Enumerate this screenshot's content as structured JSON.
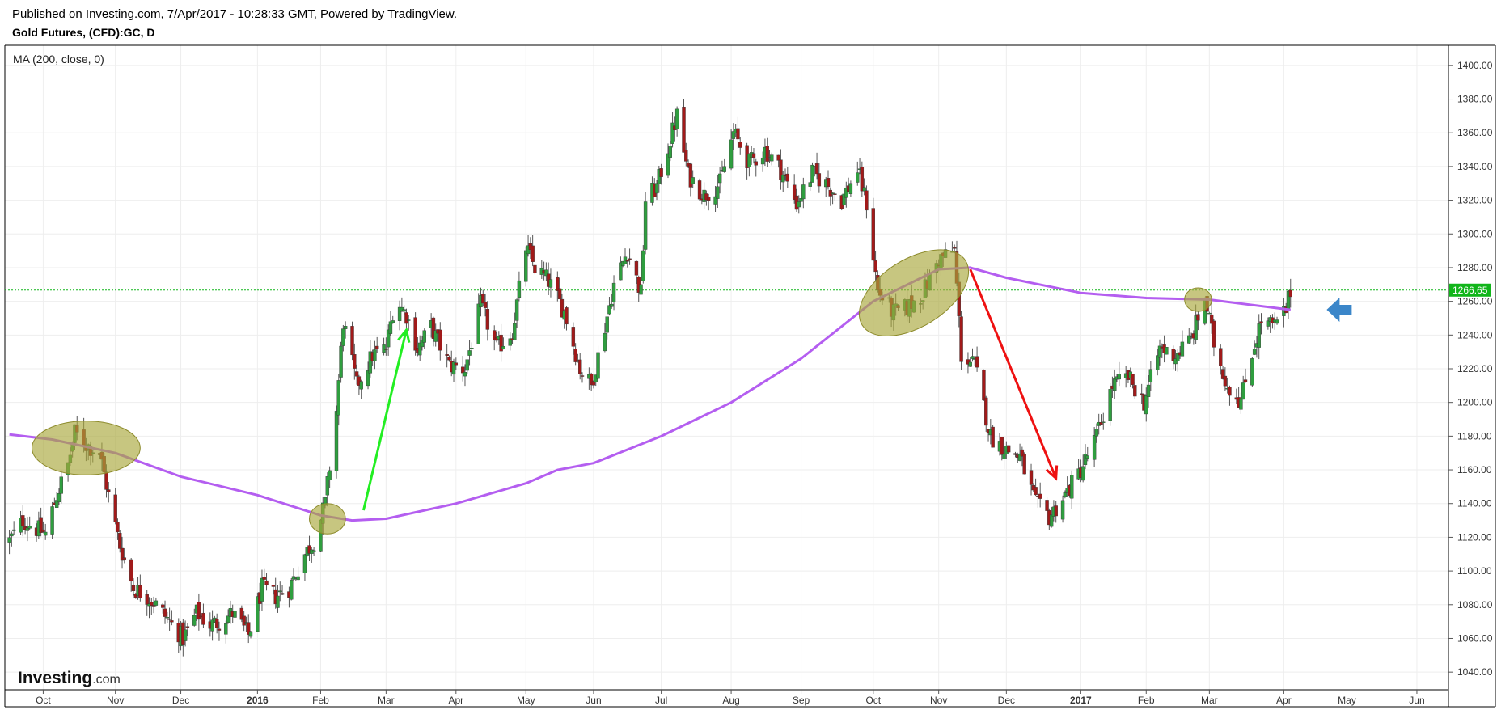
{
  "header": {
    "published": "Published on Investing.com, 7/Apr/2017 - 10:28:33 GMT, Powered by TradingView.",
    "instrument": "Gold Futures, (CFD):GC, D"
  },
  "indicator_label": "MA (200, close, 0)",
  "branding": {
    "logo_main": "Investing",
    "logo_suffix": ".com"
  },
  "colors": {
    "up_candle": "#2f9e3f",
    "down_candle": "#a11a1a",
    "moving_average": "#b45ef0",
    "last_price_line": "#11b51a",
    "annotation_ellipse": "#a9a83c",
    "arrow_up": "#22ee22",
    "arrow_down": "#ee1111",
    "arrow_pointer": "#3b86c9"
  },
  "icons": {
    "pointer": "left-arrow-icon"
  },
  "chart_data": {
    "type": "candlestick",
    "title": "Gold Futures, (CFD):GC, D",
    "ylim": [
      1030,
      1410
    ],
    "y_ticks": [
      "1040.00",
      "1060.00",
      "1080.00",
      "1100.00",
      "1120.00",
      "1140.00",
      "1160.00",
      "1180.00",
      "1200.00",
      "1220.00",
      "1240.00",
      "1260.00",
      "1280.00",
      "1300.00",
      "1320.00",
      "1340.00",
      "1360.00",
      "1380.00",
      "1400.00"
    ],
    "x_ticks": [
      {
        "label": "Oct",
        "date": "2015-10-01",
        "bold": false
      },
      {
        "label": "Nov",
        "date": "2015-11-02",
        "bold": false
      },
      {
        "label": "Dec",
        "date": "2015-12-01",
        "bold": false
      },
      {
        "label": "2016",
        "date": "2016-01-04",
        "bold": true
      },
      {
        "label": "Feb",
        "date": "2016-02-01",
        "bold": false
      },
      {
        "label": "Mar",
        "date": "2016-03-01",
        "bold": false
      },
      {
        "label": "Apr",
        "date": "2016-04-01",
        "bold": false
      },
      {
        "label": "May",
        "date": "2016-05-02",
        "bold": false
      },
      {
        "label": "Jun",
        "date": "2016-06-01",
        "bold": false
      },
      {
        "label": "Jul",
        "date": "2016-07-01",
        "bold": false
      },
      {
        "label": "Aug",
        "date": "2016-08-01",
        "bold": false
      },
      {
        "label": "Sep",
        "date": "2016-09-01",
        "bold": false
      },
      {
        "label": "Oct",
        "date": "2016-10-03",
        "bold": false
      },
      {
        "label": "Nov",
        "date": "2016-11-01",
        "bold": false
      },
      {
        "label": "Dec",
        "date": "2016-12-01",
        "bold": false
      },
      {
        "label": "2017",
        "date": "2017-01-03",
        "bold": true
      },
      {
        "label": "Feb",
        "date": "2017-02-01",
        "bold": false
      },
      {
        "label": "Mar",
        "date": "2017-03-01",
        "bold": false
      },
      {
        "label": "Apr",
        "date": "2017-04-03",
        "bold": false
      },
      {
        "label": "May",
        "date": "2017-05-01",
        "bold": false
      },
      {
        "label": "Jun",
        "date": "2017-06-01",
        "bold": false
      }
    ],
    "last_price": 1266.65,
    "last_price_label": "1266.65",
    "close_path": [
      [
        "2015-09-16",
        1118
      ],
      [
        "2015-09-22",
        1130
      ],
      [
        "2015-09-28",
        1125
      ],
      [
        "2015-10-02",
        1122
      ],
      [
        "2015-10-07",
        1145
      ],
      [
        "2015-10-12",
        1163
      ],
      [
        "2015-10-15",
        1182
      ],
      [
        "2015-10-20",
        1175
      ],
      [
        "2015-10-26",
        1170
      ],
      [
        "2015-10-30",
        1145
      ],
      [
        "2015-11-04",
        1115
      ],
      [
        "2015-11-10",
        1090
      ],
      [
        "2015-11-16",
        1085
      ],
      [
        "2015-11-20",
        1080
      ],
      [
        "2015-11-26",
        1070
      ],
      [
        "2015-12-02",
        1060
      ],
      [
        "2015-12-08",
        1075
      ],
      [
        "2015-12-14",
        1068
      ],
      [
        "2015-12-18",
        1070
      ],
      [
        "2015-12-24",
        1075
      ],
      [
        "2015-12-31",
        1062
      ],
      [
        "2016-01-06",
        1090
      ],
      [
        "2016-01-12",
        1085
      ],
      [
        "2016-01-18",
        1090
      ],
      [
        "2016-01-25",
        1110
      ],
      [
        "2016-01-29",
        1118
      ],
      [
        "2016-02-03",
        1140
      ],
      [
        "2016-02-08",
        1195
      ],
      [
        "2016-02-11",
        1248
      ],
      [
        "2016-02-17",
        1210
      ],
      [
        "2016-02-24",
        1228
      ],
      [
        "2016-03-01",
        1232
      ],
      [
        "2016-03-05",
        1262
      ],
      [
        "2016-03-10",
        1252
      ],
      [
        "2016-03-15",
        1232
      ],
      [
        "2016-03-21",
        1245
      ],
      [
        "2016-03-29",
        1222
      ],
      [
        "2016-04-05",
        1220
      ],
      [
        "2016-04-12",
        1258
      ],
      [
        "2016-04-19",
        1232
      ],
      [
        "2016-04-26",
        1242
      ],
      [
        "2016-05-02",
        1292
      ],
      [
        "2016-05-06",
        1280
      ],
      [
        "2016-05-12",
        1272
      ],
      [
        "2016-05-19",
        1254
      ],
      [
        "2016-05-26",
        1220
      ],
      [
        "2016-05-31",
        1210
      ],
      [
        "2016-06-06",
        1245
      ],
      [
        "2016-06-10",
        1270
      ],
      [
        "2016-06-16",
        1290
      ],
      [
        "2016-06-22",
        1265
      ],
      [
        "2016-06-24",
        1320
      ],
      [
        "2016-06-29",
        1328
      ],
      [
        "2016-07-05",
        1356
      ],
      [
        "2016-07-08",
        1370
      ],
      [
        "2016-07-13",
        1335
      ],
      [
        "2016-07-20",
        1323
      ],
      [
        "2016-07-27",
        1330
      ],
      [
        "2016-08-02",
        1360
      ],
      [
        "2016-08-09",
        1342
      ],
      [
        "2016-08-16",
        1350
      ],
      [
        "2016-08-23",
        1338
      ],
      [
        "2016-08-30",
        1318
      ],
      [
        "2016-09-06",
        1336
      ],
      [
        "2016-09-12",
        1330
      ],
      [
        "2016-09-19",
        1320
      ],
      [
        "2016-09-26",
        1338
      ],
      [
        "2016-09-30",
        1318
      ],
      [
        "2016-10-05",
        1266
      ],
      [
        "2016-10-12",
        1253
      ],
      [
        "2016-10-18",
        1256
      ],
      [
        "2016-10-25",
        1265
      ],
      [
        "2016-11-01",
        1285
      ],
      [
        "2016-11-08",
        1290
      ],
      [
        "2016-11-11",
        1228
      ],
      [
        "2016-11-17",
        1222
      ],
      [
        "2016-11-24",
        1180
      ],
      [
        "2016-12-01",
        1172
      ],
      [
        "2016-12-07",
        1168
      ],
      [
        "2016-12-14",
        1140
      ],
      [
        "2016-12-20",
        1132
      ],
      [
        "2016-12-27",
        1145
      ],
      [
        "2017-01-03",
        1160
      ],
      [
        "2017-01-10",
        1180
      ],
      [
        "2017-01-17",
        1210
      ],
      [
        "2017-01-24",
        1215
      ],
      [
        "2017-01-31",
        1200
      ],
      [
        "2017-02-07",
        1232
      ],
      [
        "2017-02-14",
        1228
      ],
      [
        "2017-02-21",
        1238
      ],
      [
        "2017-02-27",
        1262
      ],
      [
        "2017-03-03",
        1235
      ],
      [
        "2017-03-09",
        1210
      ],
      [
        "2017-03-15",
        1201
      ],
      [
        "2017-03-20",
        1230
      ],
      [
        "2017-03-24",
        1248
      ],
      [
        "2017-03-30",
        1245
      ],
      [
        "2017-04-04",
        1255
      ],
      [
        "2017-04-06",
        1266.65
      ]
    ],
    "ma200": [
      [
        "2015-09-16",
        1181
      ],
      [
        "2015-10-05",
        1178
      ],
      [
        "2015-11-02",
        1170
      ],
      [
        "2015-12-01",
        1156
      ],
      [
        "2016-01-04",
        1145
      ],
      [
        "2016-02-01",
        1133
      ],
      [
        "2016-02-15",
        1130
      ],
      [
        "2016-03-01",
        1131
      ],
      [
        "2016-04-01",
        1140
      ],
      [
        "2016-05-02",
        1152
      ],
      [
        "2016-05-16",
        1160
      ],
      [
        "2016-06-01",
        1164
      ],
      [
        "2016-07-01",
        1180
      ],
      [
        "2016-08-01",
        1200
      ],
      [
        "2016-09-01",
        1226
      ],
      [
        "2016-10-03",
        1260
      ],
      [
        "2016-11-01",
        1279
      ],
      [
        "2016-11-15",
        1280
      ],
      [
        "2016-12-01",
        1274
      ],
      [
        "2017-01-03",
        1265
      ],
      [
        "2017-02-01",
        1262
      ],
      [
        "2017-03-01",
        1261
      ],
      [
        "2017-04-06",
        1255
      ]
    ],
    "annotations": {
      "ellipses": [
        {
          "date": "2015-10-20",
          "price": 1173,
          "span_days": 24,
          "price_half_range": 16,
          "rotate": 0
        },
        {
          "date": "2016-02-04",
          "price": 1131,
          "span_days": 8,
          "price_half_range": 9,
          "rotate": 0
        },
        {
          "date": "2016-10-21",
          "price": 1265,
          "span_days": 27,
          "price_half_range": 20,
          "rotate": -32
        },
        {
          "date": "2017-02-24",
          "price": 1261,
          "span_days": 6,
          "price_half_range": 7,
          "rotate": 0
        }
      ],
      "arrows": [
        {
          "color_key": "arrow_up",
          "from": [
            "2016-02-20",
            1136
          ],
          "to": [
            "2016-03-10",
            1243
          ]
        },
        {
          "color_key": "arrow_down",
          "from": [
            "2016-11-15",
            1279
          ],
          "to": [
            "2016-12-23",
            1155
          ]
        }
      ],
      "pointer": {
        "date": "2017-04-22",
        "price": 1255
      }
    }
  }
}
